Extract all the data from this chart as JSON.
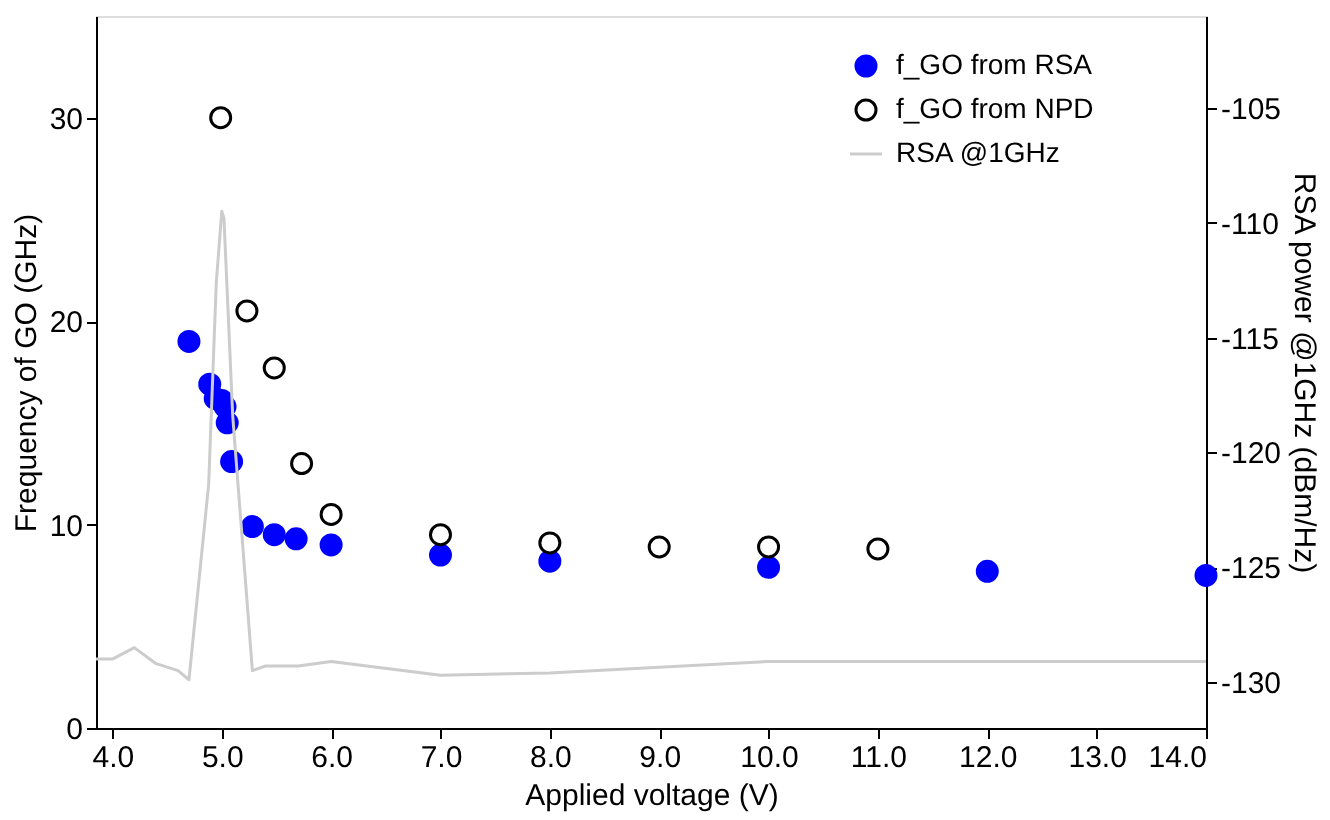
{
  "chart_data": {
    "type": "scatter",
    "xlabel": "Applied voltage (V)",
    "ylabel": "Frequency of GO (GHz)",
    "y2label": "RSA power @1GHz (dBm/Hz)",
    "xlim": [
      3.85,
      14.0
    ],
    "xticks": [
      {
        "value": 4,
        "label": "4.0"
      },
      {
        "value": 5,
        "label": "5.0"
      },
      {
        "value": 6,
        "label": "6.0"
      },
      {
        "value": 7,
        "label": "7.0"
      },
      {
        "value": 8,
        "label": "8.0"
      },
      {
        "value": 9,
        "label": "9.0"
      },
      {
        "value": 10,
        "label": "10.0"
      },
      {
        "value": 11,
        "label": "11.0"
      },
      {
        "value": 12,
        "label": "12.0"
      },
      {
        "value": 13,
        "label": "13.0"
      },
      {
        "value": 14,
        "label": "14.0"
      }
    ],
    "ylim": [
      0,
      35
    ],
    "yticks": [
      0,
      10,
      20,
      30
    ],
    "y2lim": [
      -132,
      -101
    ],
    "y2ticks": [
      -130,
      -125,
      -120,
      -115,
      -110,
      -105
    ],
    "legend": "top right",
    "grid": false,
    "series": [
      {
        "name": "f_GO from RSA",
        "marker": "circle",
        "color": "#0000ff",
        "x": [
          4.7,
          4.89,
          4.94,
          5.0,
          5.03,
          5.05,
          5.09,
          5.28,
          5.48,
          5.68,
          6.0,
          7.0,
          8.0,
          10.0,
          12.0,
          14.0
        ],
        "values": [
          19.0,
          16.9,
          16.2,
          16.1,
          15.8,
          15.0,
          13.1,
          9.9,
          9.5,
          9.3,
          9.0,
          8.5,
          8.2,
          7.9,
          7.7,
          7.5
        ]
      },
      {
        "name": "f_GO from NPD",
        "marker": "circle",
        "color": "#ffffff",
        "x": [
          4.99,
          5.23,
          5.48,
          5.73,
          6.0,
          7.0,
          8.0,
          9.0,
          10.0,
          11.0
        ],
        "values": [
          30.0,
          20.5,
          17.7,
          13.0,
          10.5,
          9.5,
          9.1,
          8.9,
          8.9,
          8.8
        ]
      },
      {
        "name": "RSA @1GHz",
        "type": "line",
        "marker": "none",
        "line_style": "solid",
        "axis": "y2",
        "color": "#cccccc",
        "x": [
          3.85,
          4.0,
          4.2,
          4.4,
          4.6,
          4.7,
          4.88,
          4.95,
          5.0,
          5.02,
          5.1,
          5.28,
          5.4,
          5.7,
          6.0,
          7.0,
          8.0,
          10.0,
          14.0
        ],
        "values": [
          -129.0,
          -129.0,
          -128.5,
          -129.2,
          -129.5,
          -129.9,
          -121.4,
          -112.6,
          -109.5,
          -109.8,
          -118.4,
          -129.5,
          -129.3,
          -129.3,
          -129.1,
          -129.7,
          -129.6,
          -129.1,
          -129.1
        ]
      }
    ]
  }
}
